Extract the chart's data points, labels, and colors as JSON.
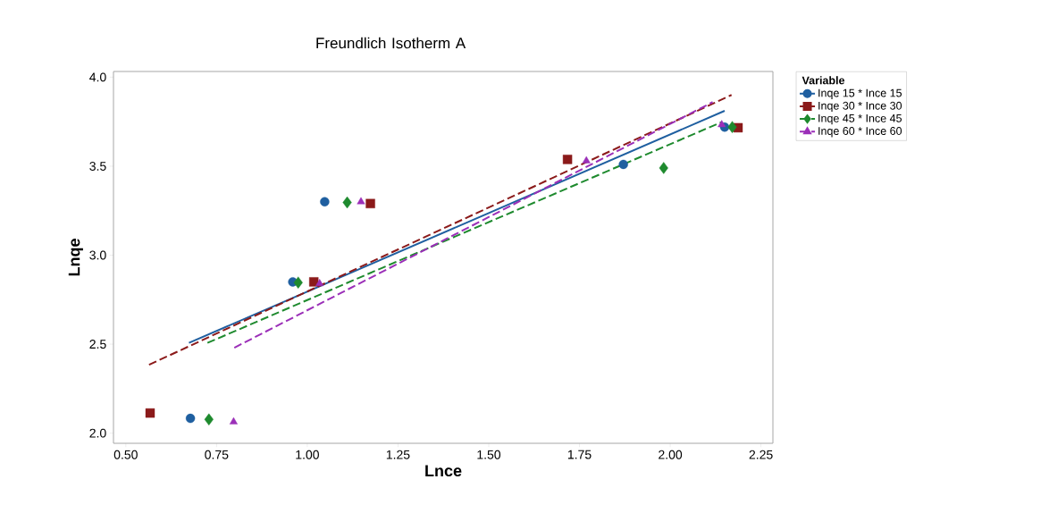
{
  "chart_data": {
    "type": "scatter",
    "title": "Freundlich Isotherm A",
    "xlabel": "Lnce",
    "ylabel": "Lnqe",
    "legend_title": "Variable",
    "legend": "right",
    "grid": false,
    "xlim": [
      0.466,
      2.283
    ],
    "ylim": [
      1.943,
      4.032
    ],
    "xticks": [
      {
        "value": 0.5,
        "label": "0.50"
      },
      {
        "value": 0.75,
        "label": "0.75"
      },
      {
        "value": 1.0,
        "label": "1.00"
      },
      {
        "value": 1.25,
        "label": "1.25"
      },
      {
        "value": 1.5,
        "label": "1.50"
      },
      {
        "value": 1.75,
        "label": "1.75"
      },
      {
        "value": 2.0,
        "label": "2.00"
      },
      {
        "value": 2.25,
        "label": "2.25"
      }
    ],
    "yticks": [
      {
        "value": 2.0,
        "label": "2.0"
      },
      {
        "value": 2.5,
        "label": "2.5"
      },
      {
        "value": 3.0,
        "label": "3.0"
      },
      {
        "value": 3.5,
        "label": "3.5"
      },
      {
        "value": 4.0,
        "label": "4.0"
      }
    ],
    "series": [
      {
        "name": "Inqe 15 * Ince 15",
        "color": "#1f5fa0",
        "marker": "circle",
        "x": [
          0.678,
          0.96,
          1.048,
          1.871,
          2.15
        ],
        "values": [
          2.083,
          2.85,
          3.3,
          3.51,
          3.72
        ]
      },
      {
        "type": "line",
        "color": "#1f5fa0",
        "line_style": "solid",
        "marker": "none",
        "x": [
          0.674,
          2.15
        ],
        "values": [
          2.507,
          3.811
        ]
      },
      {
        "name": "Inqe 30 * Ince 30",
        "color": "#8b1a1a",
        "marker": "square",
        "x": [
          0.567,
          1.018,
          1.174,
          1.717,
          2.187
        ],
        "values": [
          2.113,
          2.85,
          3.29,
          3.538,
          3.716
        ]
      },
      {
        "type": "line",
        "color": "#8b1a1a",
        "line_style": "dashed",
        "marker": "none",
        "x": [
          0.564,
          2.169
        ],
        "values": [
          2.384,
          3.9
        ]
      },
      {
        "name": "Inqe 45 * Ince 45",
        "color": "#1e8a2e",
        "marker": "diamond",
        "x": [
          0.729,
          0.975,
          1.11,
          1.982,
          2.171
        ],
        "values": [
          2.077,
          2.846,
          3.296,
          3.49,
          3.72
        ]
      },
      {
        "type": "line",
        "color": "#1e8a2e",
        "line_style": "dashed",
        "marker": "none",
        "x": [
          0.725,
          2.142
        ],
        "values": [
          2.507,
          3.748
        ]
      },
      {
        "name": "Inqe 60 * Ince 60",
        "color": "#9b2fb8",
        "marker": "triangle",
        "x": [
          0.797,
          1.034,
          1.148,
          1.769,
          2.142
        ],
        "values": [
          2.063,
          2.84,
          3.3,
          3.53,
          3.733
        ]
      },
      {
        "type": "line",
        "color": "#9b2fb8",
        "line_style": "dashed",
        "marker": "none",
        "x": [
          0.799,
          2.117
        ],
        "values": [
          2.48,
          3.86
        ]
      }
    ]
  }
}
